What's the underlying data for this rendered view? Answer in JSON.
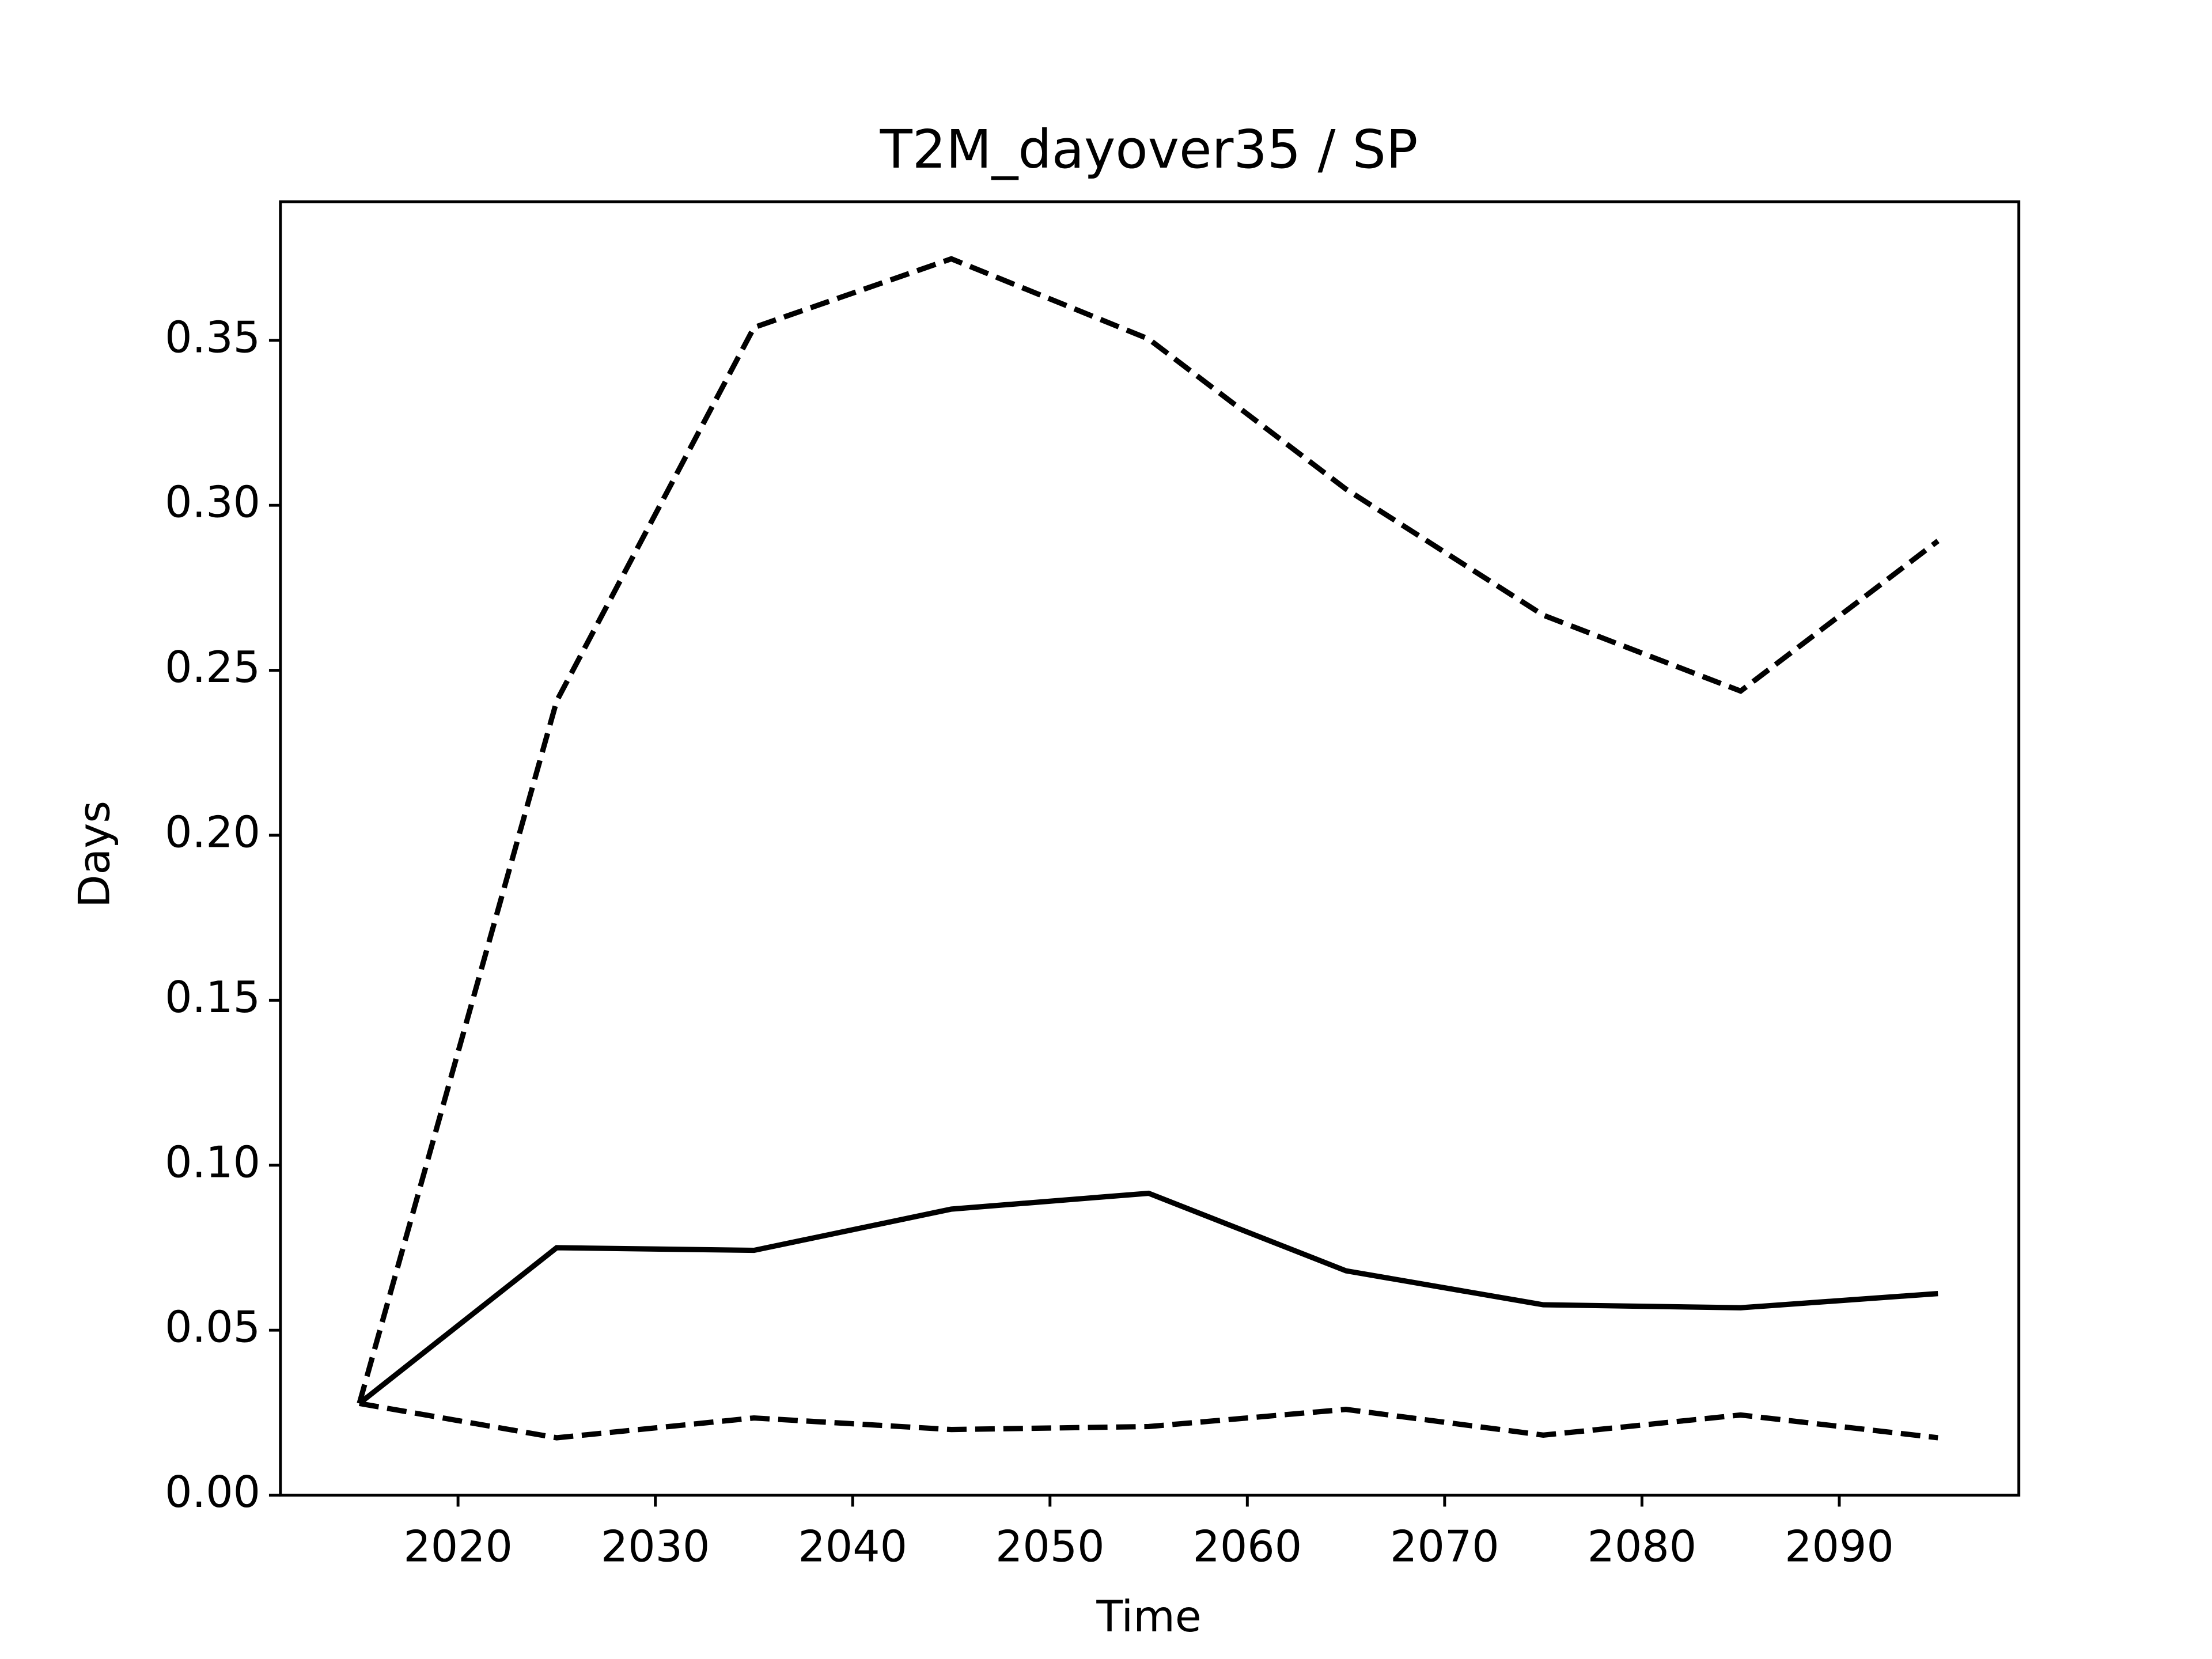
{
  "chart_data": {
    "type": "line",
    "title": "T2M_dayover35 / SP",
    "x_label": "Time",
    "y_label": "Days",
    "x": [
      2015,
      2025,
      2035,
      2045,
      2055,
      2065,
      2075,
      2085,
      2095
    ],
    "series": [
      {
        "color": "#000000",
        "dashed": false,
        "values": [
          0.0278,
          0.075,
          0.0742,
          0.0867,
          0.0915,
          0.068,
          0.0577,
          0.0568,
          0.0611
        ]
      },
      {
        "color": "#000000",
        "dashed": true,
        "values": [
          0.0278,
          0.2407,
          0.3539,
          0.3747,
          0.3504,
          0.3049,
          0.2667,
          0.2437,
          0.2892
        ]
      },
      {
        "color": "#000000",
        "dashed": true,
        "values": [
          0.0278,
          0.0174,
          0.0234,
          0.0199,
          0.0208,
          0.026,
          0.0182,
          0.0243,
          0.0174
        ]
      }
    ],
    "xlim": [
      2011,
      2099.1
    ],
    "ylim": [
      0,
      0.392
    ],
    "xticks": [
      2020,
      2030,
      2040,
      2050,
      2060,
      2070,
      2080,
      2090
    ],
    "yticks": [
      {
        "value": 0,
        "label": "0.00"
      },
      {
        "value": 0.05,
        "label": "0.05"
      },
      {
        "value": 0.1,
        "label": "0.10"
      },
      {
        "value": 0.15,
        "label": "0.15"
      },
      {
        "value": 0.2,
        "label": "0.20"
      },
      {
        "value": 0.25,
        "label": "0.25"
      },
      {
        "value": 0.3,
        "label": "0.30"
      },
      {
        "value": 0.35,
        "label": "0.35"
      }
    ],
    "grid": false
  }
}
